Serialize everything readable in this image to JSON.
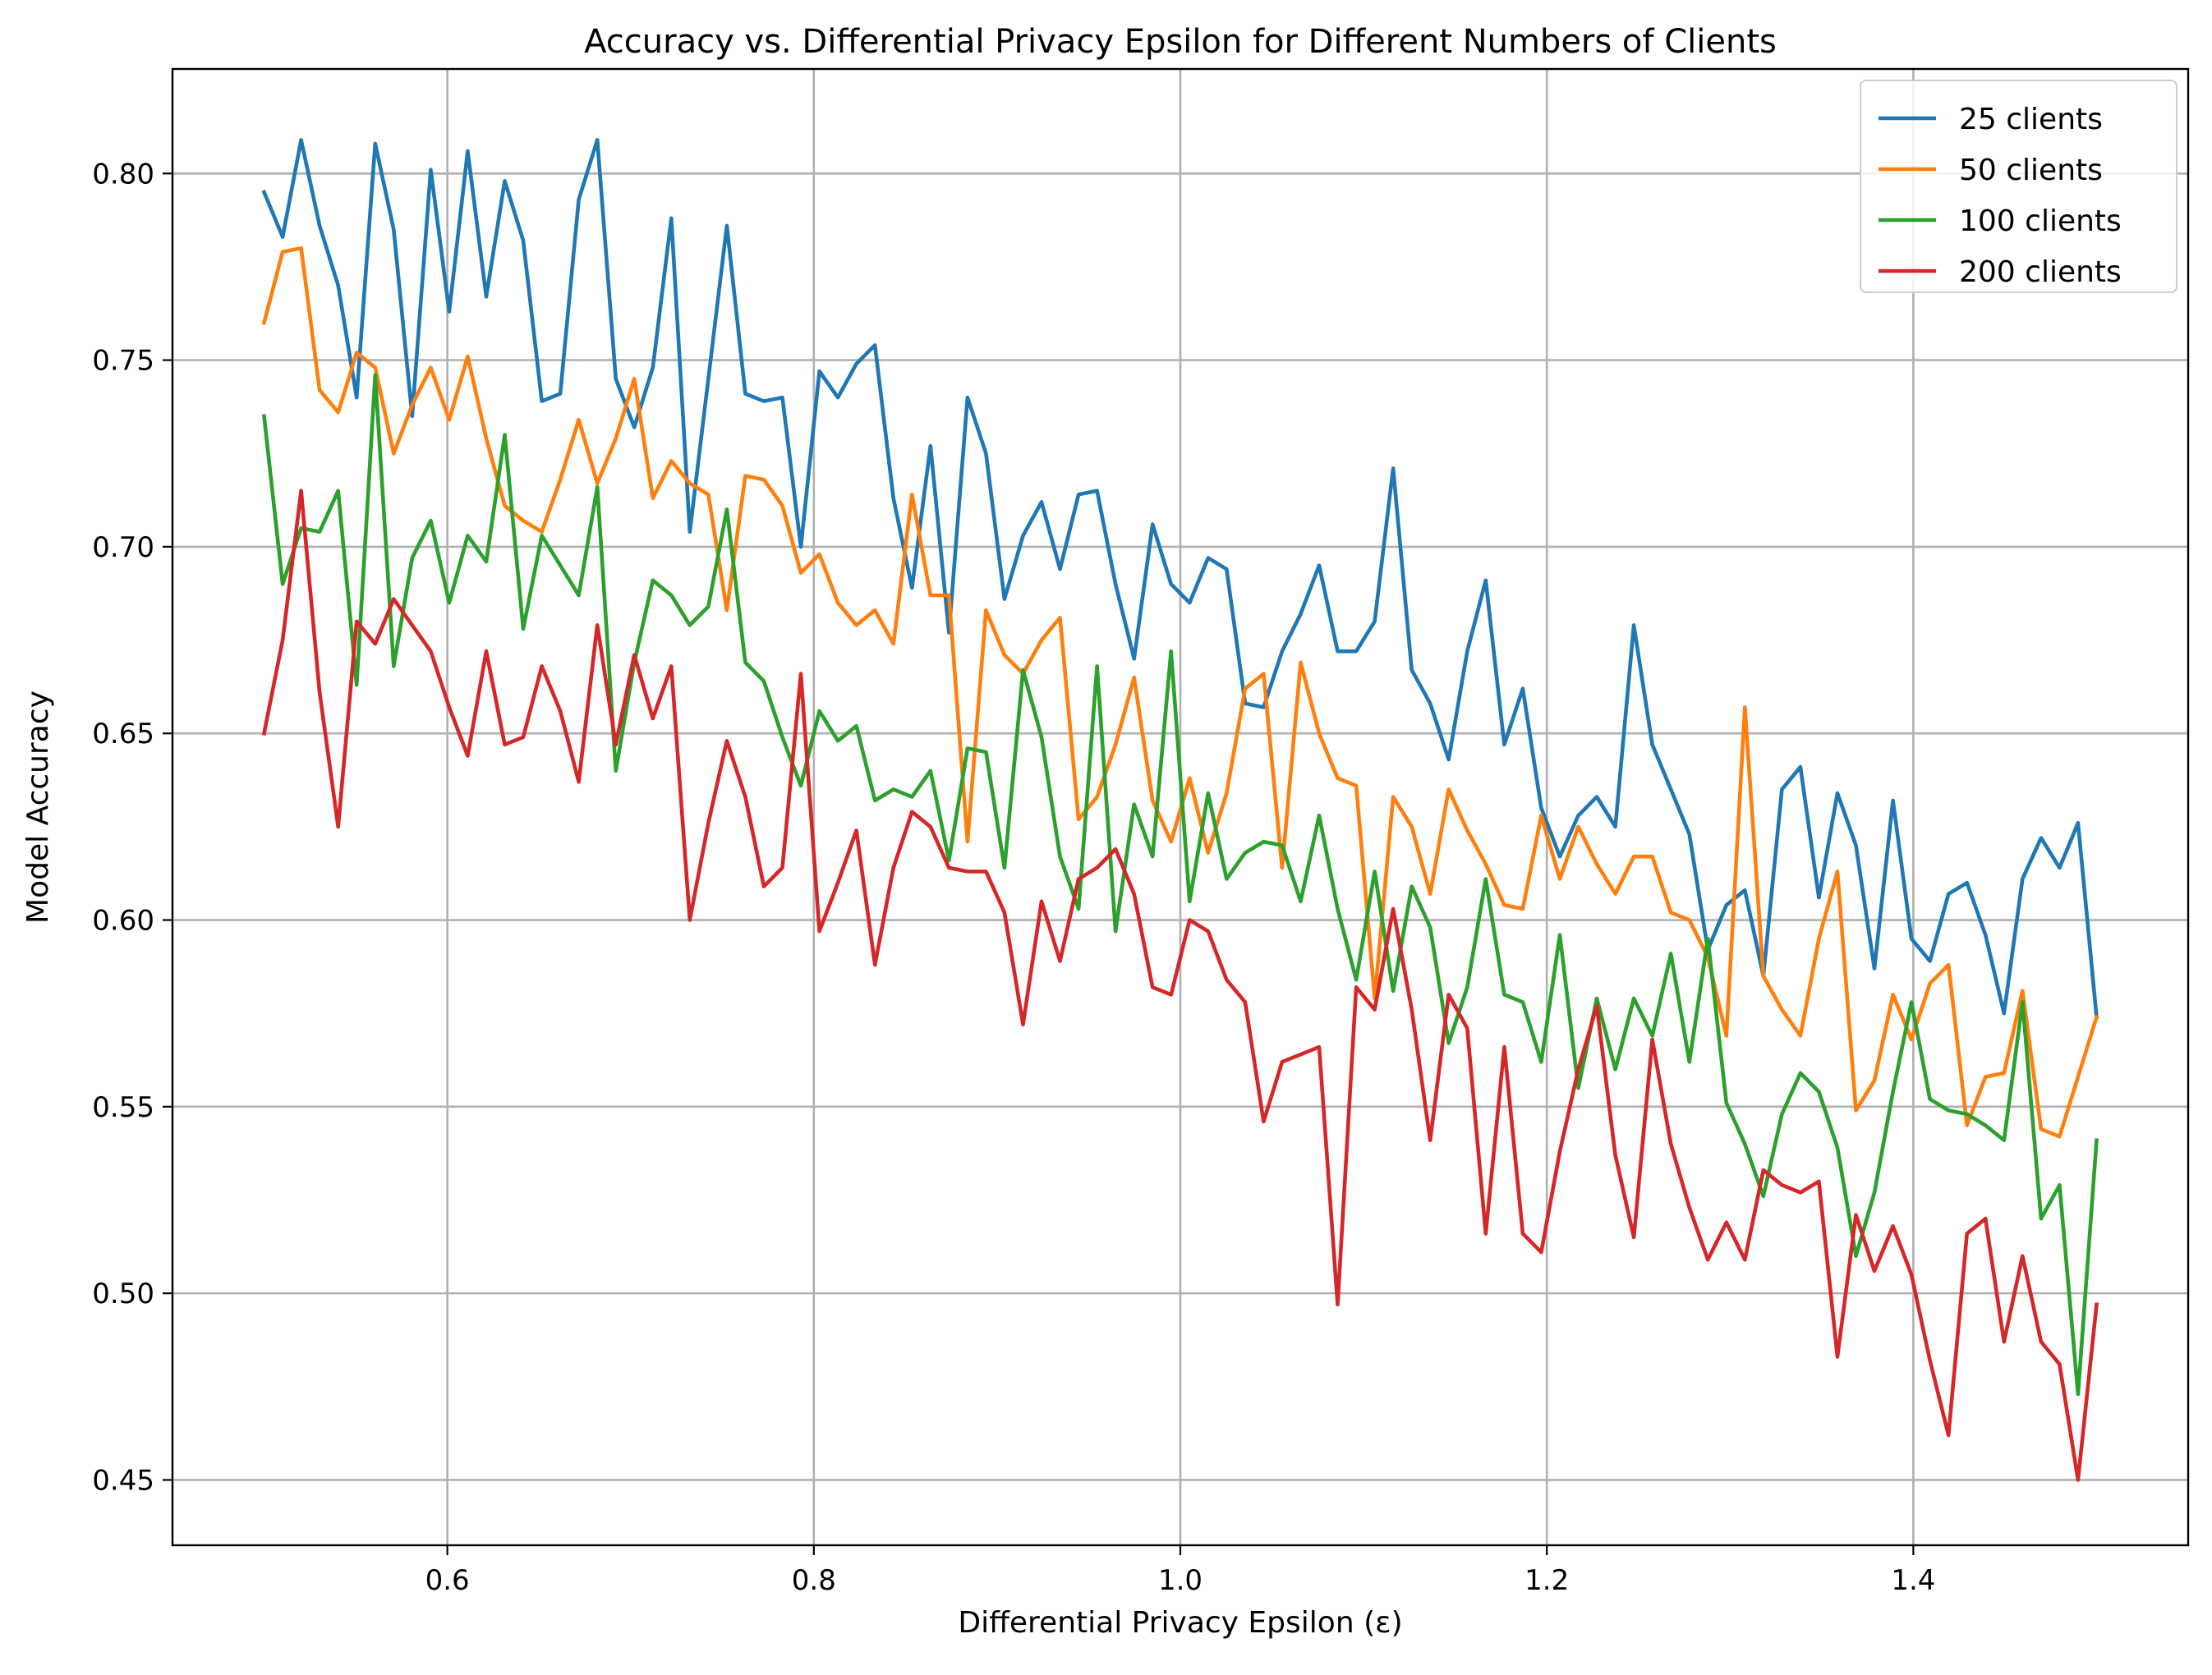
{
  "chart_data": {
    "type": "line",
    "title": "Accuracy vs. Differential Privacy Epsilon for Different Numbers of Clients",
    "xlabel": "Differential Privacy Epsilon (ε)",
    "ylabel": "Model Accuracy",
    "xlim": [
      0.45,
      1.55
    ],
    "ylim": [
      0.4325,
      0.828
    ],
    "grid": true,
    "legend_position": "top-right",
    "x_ticks": [
      0.6,
      0.8,
      1.0,
      1.2,
      1.4
    ],
    "x_tick_labels": [
      "0.6",
      "0.8",
      "1.0",
      "1.2",
      "1.4"
    ],
    "y_ticks": [
      0.45,
      0.5,
      0.55,
      0.6,
      0.65,
      0.7,
      0.75,
      0.8
    ],
    "y_tick_labels": [
      "0.45",
      "0.50",
      "0.55",
      "0.60",
      "0.65",
      "0.70",
      "0.75",
      "0.80"
    ],
    "x": {
      "start": 0.5,
      "end": 1.5,
      "count": 100
    },
    "series": [
      {
        "name": "25 clients",
        "color": "#1f77b4",
        "values": [
          0.795,
          0.783,
          0.809,
          0.786,
          0.77,
          0.74,
          0.808,
          0.785,
          0.735,
          0.801,
          0.763,
          0.806,
          0.767,
          0.798,
          0.782,
          0.739,
          0.741,
          0.793,
          0.809,
          0.745,
          0.732,
          0.748,
          0.788,
          0.704,
          0.745,
          0.786,
          0.741,
          0.739,
          0.74,
          0.7,
          0.747,
          0.74,
          0.749,
          0.754,
          0.713,
          0.689,
          0.727,
          0.677,
          0.74,
          0.725,
          0.686,
          0.703,
          0.712,
          0.694,
          0.714,
          0.715,
          0.69,
          0.67,
          0.706,
          0.69,
          0.685,
          0.697,
          0.694,
          0.658,
          0.657,
          0.672,
          0.682,
          0.695,
          0.672,
          0.672,
          0.68,
          0.721,
          0.667,
          0.658,
          0.643,
          0.672,
          0.691,
          0.647,
          0.662,
          0.63,
          0.617,
          0.628,
          0.633,
          0.625,
          0.679,
          0.647,
          0.635,
          0.623,
          0.592,
          0.604,
          0.608,
          0.585,
          0.635,
          0.641,
          0.606,
          0.634,
          0.62,
          0.587,
          0.632,
          0.595,
          0.589,
          0.607,
          0.61,
          0.596,
          0.575,
          0.611,
          0.622,
          0.614,
          0.626,
          0.574
        ]
      },
      {
        "name": "50 clients",
        "color": "#ff7f0e",
        "values": [
          0.76,
          0.779,
          0.78,
          0.742,
          0.736,
          0.752,
          0.748,
          0.725,
          0.738,
          0.748,
          0.734,
          0.751,
          0.729,
          0.711,
          0.707,
          0.704,
          0.718,
          0.734,
          0.717,
          0.729,
          0.745,
          0.713,
          0.723,
          0.717,
          0.714,
          0.683,
          0.719,
          0.718,
          0.711,
          0.693,
          0.698,
          0.685,
          0.679,
          0.683,
          0.674,
          0.714,
          0.687,
          0.687,
          0.621,
          0.683,
          0.671,
          0.666,
          0.675,
          0.681,
          0.627,
          0.633,
          0.647,
          0.665,
          0.632,
          0.621,
          0.638,
          0.618,
          0.634,
          0.662,
          0.666,
          0.614,
          0.669,
          0.65,
          0.638,
          0.636,
          0.579,
          0.633,
          0.625,
          0.607,
          0.635,
          0.624,
          0.615,
          0.604,
          0.603,
          0.628,
          0.611,
          0.625,
          0.615,
          0.607,
          0.617,
          0.617,
          0.602,
          0.6,
          0.59,
          0.569,
          0.657,
          0.585,
          0.576,
          0.569,
          0.595,
          0.613,
          0.549,
          0.557,
          0.58,
          0.568,
          0.583,
          0.588,
          0.545,
          0.558,
          0.559,
          0.581,
          0.544,
          0.542,
          0.558,
          0.574
        ]
      },
      {
        "name": "100 clients",
        "color": "#2ca02c",
        "values": [
          0.735,
          0.69,
          0.705,
          0.704,
          0.715,
          0.663,
          0.746,
          0.668,
          0.697,
          0.707,
          0.685,
          0.703,
          0.696,
          0.73,
          0.678,
          0.703,
          0.695,
          0.687,
          0.716,
          0.64,
          0.669,
          0.691,
          0.687,
          0.679,
          0.684,
          0.71,
          0.669,
          0.664,
          0.649,
          0.636,
          0.656,
          0.648,
          0.652,
          0.632,
          0.635,
          0.633,
          0.64,
          0.616,
          0.646,
          0.645,
          0.614,
          0.667,
          0.649,
          0.617,
          0.603,
          0.668,
          0.597,
          0.631,
          0.617,
          0.672,
          0.605,
          0.634,
          0.611,
          0.618,
          0.621,
          0.62,
          0.605,
          0.628,
          0.603,
          0.584,
          0.613,
          0.581,
          0.609,
          0.598,
          0.567,
          0.582,
          0.611,
          0.58,
          0.578,
          0.562,
          0.596,
          0.555,
          0.579,
          0.56,
          0.579,
          0.569,
          0.591,
          0.562,
          0.595,
          0.551,
          0.54,
          0.526,
          0.548,
          0.559,
          0.554,
          0.539,
          0.51,
          0.527,
          0.554,
          0.578,
          0.552,
          0.549,
          0.548,
          0.545,
          0.541,
          0.578,
          0.52,
          0.529,
          0.473,
          0.541
        ]
      },
      {
        "name": "200 clients",
        "color": "#d62728",
        "values": [
          0.65,
          0.675,
          0.715,
          0.661,
          0.625,
          0.68,
          0.674,
          0.686,
          0.679,
          0.672,
          0.657,
          0.644,
          0.672,
          0.647,
          0.649,
          0.668,
          0.656,
          0.637,
          0.679,
          0.647,
          0.671,
          0.654,
          0.668,
          0.6,
          0.626,
          0.648,
          0.633,
          0.609,
          0.614,
          0.666,
          0.597,
          0.61,
          0.624,
          0.588,
          0.614,
          0.629,
          0.625,
          0.614,
          0.613,
          0.613,
          0.602,
          0.572,
          0.605,
          0.589,
          0.611,
          0.614,
          0.619,
          0.607,
          0.582,
          0.58,
          0.6,
          0.597,
          0.584,
          0.578,
          0.546,
          0.562,
          0.564,
          0.566,
          0.497,
          0.582,
          0.576,
          0.603,
          0.576,
          0.541,
          0.58,
          0.571,
          0.516,
          0.566,
          0.516,
          0.511,
          0.538,
          0.56,
          0.577,
          0.537,
          0.515,
          0.568,
          0.54,
          0.523,
          0.509,
          0.519,
          0.509,
          0.533,
          0.529,
          0.527,
          0.53,
          0.483,
          0.521,
          0.506,
          0.518,
          0.505,
          0.482,
          0.462,
          0.516,
          0.52,
          0.487,
          0.51,
          0.487,
          0.481,
          0.45,
          0.497
        ]
      }
    ]
  }
}
